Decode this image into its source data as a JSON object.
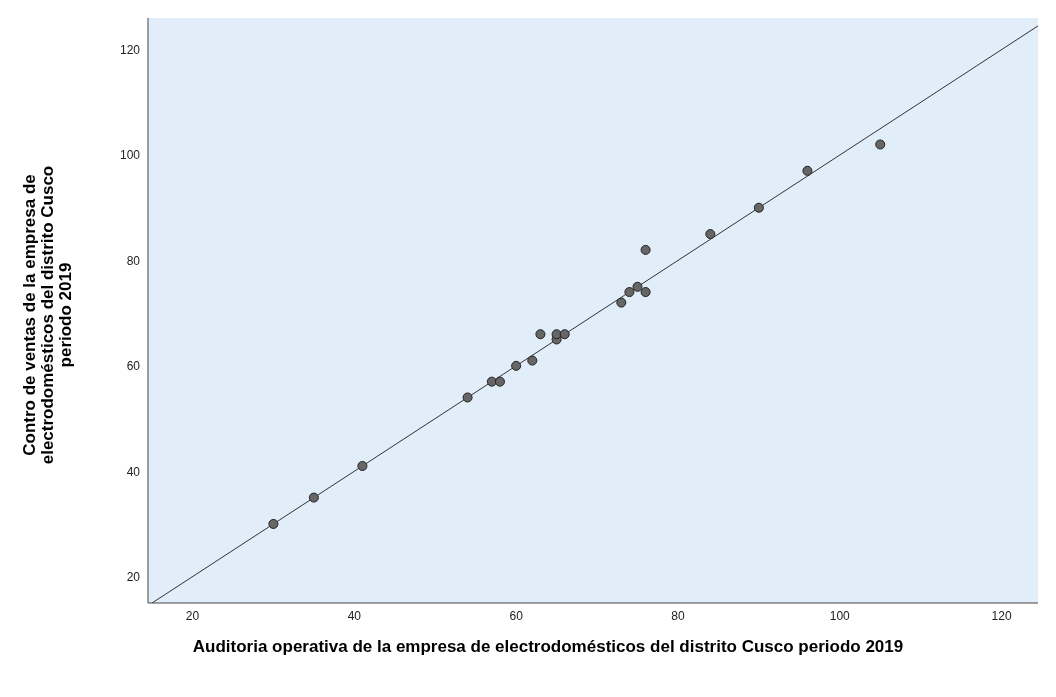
{
  "chart_data": {
    "type": "scatter",
    "xlabel": "Auditoria operativa de la empresa de electrodomésticos del distrito Cusco periodo 2019",
    "ylabel": "Contro de ventas de la empresa de electrodomésticos del distrito Cusco periodo 2019",
    "x": [
      30,
      35,
      41,
      54,
      57,
      58,
      60,
      62,
      63,
      65,
      65,
      66,
      73,
      74,
      75,
      76,
      76,
      84,
      90,
      96,
      105
    ],
    "series": [
      {
        "color": "#666666",
        "marker": "circle",
        "values": [
          30,
          35,
          41,
          54,
          57,
          57,
          60,
          61,
          66,
          65,
          66,
          66,
          72,
          74,
          75,
          74,
          82,
          85,
          90,
          97,
          102
        ]
      },
      {
        "type": "line",
        "color": "#333333",
        "marker": "none",
        "x": [
          15,
          124.5
        ],
        "values": [
          15,
          124.5
        ]
      }
    ],
    "xlim": [
      14.5,
      124.5
    ],
    "ylim": [
      15,
      126
    ],
    "xticks": [
      20,
      40,
      60,
      80,
      100,
      120
    ],
    "yticks": [
      20,
      40,
      60,
      80,
      100,
      120
    ],
    "grid": false
  }
}
